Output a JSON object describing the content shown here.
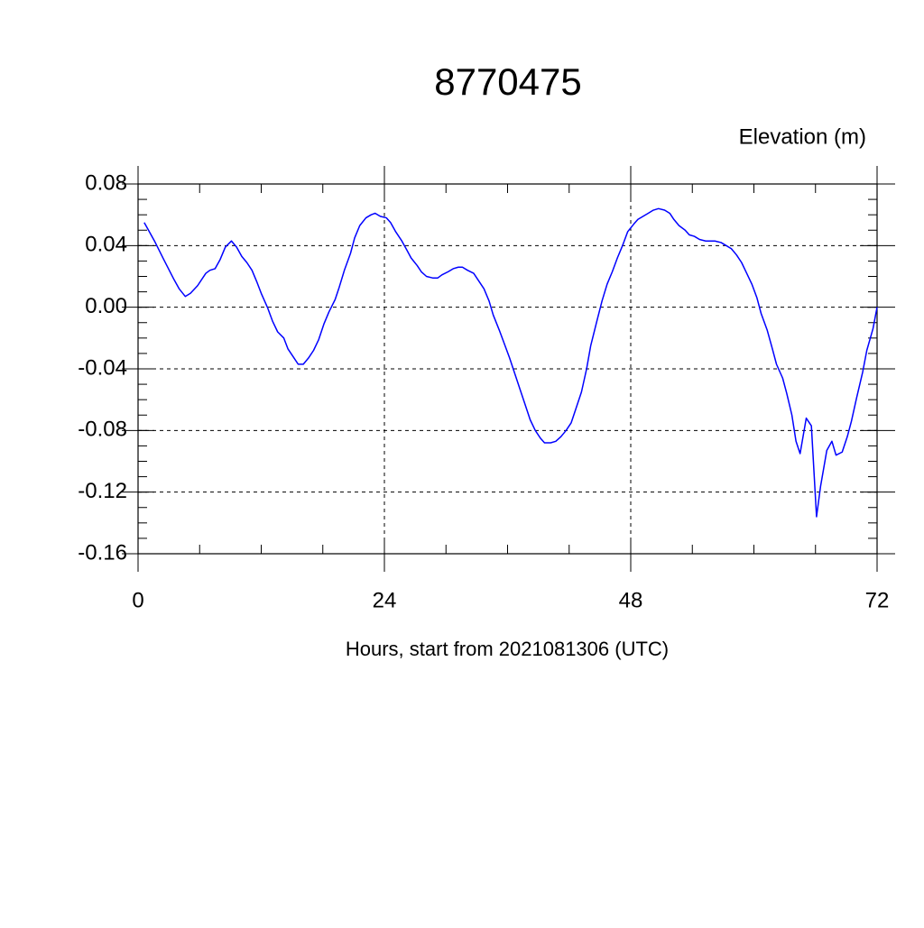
{
  "chart_data": {
    "type": "line",
    "title": "8770475",
    "ylabel": "Elevation (m)",
    "xlabel": "Hours, start from 2021081306 (UTC)",
    "xlim": [
      0,
      72
    ],
    "xticks": [
      0,
      24,
      48,
      72
    ],
    "ylim": [
      -0.16,
      0.08
    ],
    "yticks": [
      -0.16,
      -0.12,
      -0.08,
      -0.04,
      {
        "value": 0,
        "label": "0.00"
      },
      0.04,
      0.08
    ],
    "grid": true,
    "series": [
      {
        "color": "#0000ff",
        "x": [
          0.6,
          1.6,
          2.5,
          3.5,
          4.0,
          4.6,
          5.1,
          5.8,
          6.6,
          7.0,
          7.5,
          8.0,
          8.5,
          9.1,
          9.6,
          10.1,
          10.6,
          11.1,
          11.6,
          12.0,
          12.6,
          13.1,
          13.6,
          14.2,
          14.6,
          15.1,
          15.6,
          16.1,
          16.6,
          17.1,
          17.6,
          18.1,
          18.6,
          19.2,
          19.6,
          20.1,
          20.7,
          21.1,
          21.6,
          22.2,
          22.7,
          23.1,
          23.6,
          24.2,
          24.6,
          25.1,
          25.7,
          26.2,
          26.6,
          27.2,
          27.6,
          28.1,
          28.7,
          29.2,
          29.6,
          30.2,
          30.7,
          31.2,
          31.6,
          32.1,
          32.7,
          33.1,
          33.7,
          34.2,
          34.6,
          35.2,
          35.7,
          36.2,
          36.7,
          37.2,
          37.7,
          38.2,
          38.7,
          39.2,
          39.6,
          40.2,
          40.7,
          41.2,
          41.7,
          42.2,
          42.6,
          43.2,
          43.7,
          44.1,
          44.7,
          45.2,
          45.7,
          46.2,
          46.7,
          47.2,
          47.7,
          48.3,
          48.7,
          49.2,
          49.7,
          50.2,
          50.7,
          51.3,
          51.8,
          52.2,
          52.7,
          53.3,
          53.7,
          54.2,
          54.7,
          55.3,
          55.7,
          56.2,
          56.8,
          57.3,
          57.8,
          58.3,
          58.8,
          59.3,
          59.8,
          60.3,
          60.7,
          61.3,
          61.8,
          62.2,
          62.8,
          63.2,
          63.7,
          64.1,
          64.5,
          65.1,
          65.6,
          66.1,
          66.5,
          67.1,
          67.6,
          68.0,
          68.6,
          69.1,
          69.5,
          70.0,
          70.6,
          71.0,
          71.6,
          72.0
        ],
        "values": [
          0.055,
          0.043,
          0.031,
          0.018,
          0.012,
          0.007,
          0.009,
          0.014,
          0.022,
          0.024,
          0.025,
          0.031,
          0.039,
          0.043,
          0.039,
          0.033,
          0.029,
          0.024,
          0.016,
          0.009,
          0.0,
          -0.009,
          -0.016,
          -0.02,
          -0.027,
          -0.032,
          -0.037,
          -0.037,
          -0.033,
          -0.028,
          -0.021,
          -0.011,
          -0.003,
          0.005,
          0.013,
          0.024,
          0.035,
          0.045,
          0.053,
          0.058,
          0.06,
          0.061,
          0.059,
          0.058,
          0.055,
          0.049,
          0.043,
          0.037,
          0.032,
          0.027,
          0.023,
          0.02,
          0.019,
          0.019,
          0.021,
          0.023,
          0.025,
          0.026,
          0.026,
          0.024,
          0.022,
          0.018,
          0.012,
          0.004,
          -0.005,
          -0.015,
          -0.024,
          -0.033,
          -0.043,
          -0.053,
          -0.063,
          -0.073,
          -0.08,
          -0.085,
          -0.088,
          -0.088,
          -0.087,
          -0.084,
          -0.08,
          -0.075,
          -0.067,
          -0.055,
          -0.04,
          -0.025,
          -0.009,
          0.004,
          0.015,
          0.023,
          0.032,
          0.04,
          0.049,
          0.054,
          0.057,
          0.059,
          0.061,
          0.063,
          0.064,
          0.063,
          0.061,
          0.057,
          0.053,
          0.05,
          0.047,
          0.046,
          0.044,
          0.043,
          0.043,
          0.043,
          0.042,
          0.04,
          0.038,
          0.034,
          0.029,
          0.022,
          0.015,
          0.006,
          -0.004,
          -0.015,
          -0.027,
          -0.037,
          -0.046,
          -0.056,
          -0.07,
          -0.087,
          -0.095,
          -0.072,
          -0.077,
          -0.136,
          -0.116,
          -0.093,
          -0.087,
          -0.096,
          -0.094,
          -0.084,
          -0.074,
          -0.059,
          -0.042,
          -0.028,
          -0.014,
          0.0
        ]
      }
    ]
  }
}
